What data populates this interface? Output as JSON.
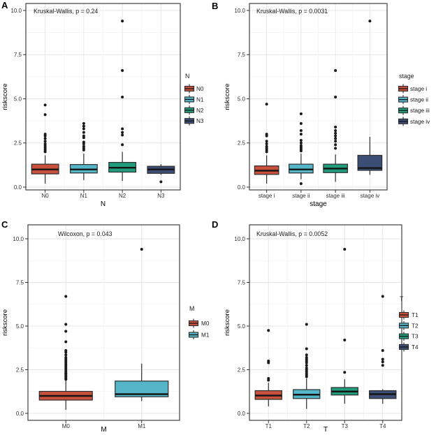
{
  "panel_labels": [
    "A",
    "B",
    "C",
    "D"
  ],
  "shared": {
    "y_axis_title": "riskscore",
    "ytick_labels": [
      "0.0",
      "2.5",
      "5.0",
      "7.5",
      "10.0"
    ],
    "ytick_values": [
      0,
      2.5,
      5,
      7.5,
      10
    ],
    "point_color": "#1a1a1a",
    "palette": [
      "#C8503C",
      "#54B6C8",
      "#219C7D",
      "#3C4E76"
    ]
  },
  "chart_data": [
    {
      "type": "boxplot",
      "panel_label": "A",
      "annotation": "Kruskal-Wallis, p = 0.24",
      "xlabel": "N",
      "ylabel": "riskscore",
      "ylim": [
        -0.2,
        10.4
      ],
      "yticks": [
        0,
        2.5,
        5,
        7.5,
        10
      ],
      "ytick_labels": [
        "0.0",
        "2.5",
        "5.0",
        "7.5",
        "10.0"
      ],
      "grid": true,
      "categories": [
        "N0",
        "N1",
        "N2",
        "N3"
      ],
      "legend": {
        "title": "N",
        "position": "right",
        "labels": [
          "N0",
          "N1",
          "N2",
          "N3"
        ]
      },
      "series": [
        {
          "name": "N0",
          "color": "#C8503C",
          "whisker_low": 0.2,
          "q1": 0.75,
          "median": 1.0,
          "q3": 1.3,
          "whisker_high": 1.8,
          "outliers": [
            2.0,
            2.05,
            2.15,
            2.25,
            2.35,
            2.45,
            2.6,
            2.75,
            2.9,
            3.0,
            4.1,
            4.65
          ]
        },
        {
          "name": "N1",
          "color": "#54B6C8",
          "whisker_low": 0.4,
          "q1": 0.8,
          "median": 1.0,
          "q3": 1.28,
          "whisker_high": 1.9,
          "outliers": [
            2.1,
            2.2,
            2.3,
            2.45,
            2.55,
            2.8,
            2.9,
            3.1,
            3.3,
            3.45,
            3.6
          ]
        },
        {
          "name": "N2",
          "color": "#219C7D",
          "whisker_low": 0.35,
          "q1": 0.85,
          "median": 1.1,
          "q3": 1.4,
          "whisker_high": 2.0,
          "outliers": [
            2.4,
            2.95,
            3.1,
            3.3,
            5.1,
            6.6,
            9.4
          ]
        },
        {
          "name": "N3",
          "color": "#3C4E76",
          "whisker_low": 0.7,
          "q1": 0.78,
          "median": 1.0,
          "q3": 1.18,
          "whisker_high": 1.3,
          "outliers": [
            0.3
          ]
        }
      ]
    },
    {
      "type": "boxplot",
      "panel_label": "B",
      "annotation": "Kruskal-Wallis, p = 0.0031",
      "xlabel": "stage",
      "ylabel": "riskscore",
      "ylim": [
        -0.2,
        10.4
      ],
      "yticks": [
        0,
        2.5,
        5,
        7.5,
        10
      ],
      "ytick_labels": [
        "0.0",
        "2.5",
        "5.0",
        "7.5",
        "10.0"
      ],
      "grid": true,
      "categories": [
        "stage i",
        "stage ii",
        "stage iii",
        "stage iv"
      ],
      "legend": {
        "title": "stage",
        "position": "right",
        "labels": [
          "stage i",
          "stage ii",
          "stage iii",
          "stage iv"
        ]
      },
      "series": [
        {
          "name": "stage i",
          "color": "#C8503C",
          "whisker_low": 0.2,
          "q1": 0.72,
          "median": 0.93,
          "q3": 1.2,
          "whisker_high": 1.8,
          "outliers": [
            2.0,
            2.1,
            2.2,
            2.3,
            2.45,
            2.6,
            2.9,
            3.0,
            4.7
          ]
        },
        {
          "name": "stage ii",
          "color": "#54B6C8",
          "whisker_low": 0.45,
          "q1": 0.8,
          "median": 1.0,
          "q3": 1.3,
          "whisker_high": 1.9,
          "outliers": [
            0.2,
            2.05,
            2.15,
            2.25,
            2.35,
            2.5,
            2.65,
            3.0,
            3.2,
            3.6,
            4.15
          ]
        },
        {
          "name": "stage iii",
          "color": "#219C7D",
          "whisker_low": 0.3,
          "q1": 0.82,
          "median": 1.05,
          "q3": 1.3,
          "whisker_high": 1.85,
          "outliers": [
            2.2,
            2.4,
            2.6,
            2.75,
            2.9,
            3.05,
            3.2,
            3.4,
            5.1,
            6.6
          ]
        },
        {
          "name": "stage iv",
          "color": "#3C4E76",
          "whisker_low": 0.7,
          "q1": 0.95,
          "median": 1.08,
          "q3": 1.8,
          "whisker_high": 2.85,
          "outliers": [
            9.4
          ]
        }
      ]
    },
    {
      "type": "boxplot",
      "panel_label": "C",
      "annotation": "Wilcoxon, p = 0.043",
      "xlabel": "M",
      "ylabel": "riskscore",
      "ylim": [
        -0.4,
        10.8
      ],
      "yticks": [
        0,
        2.5,
        5,
        7.5,
        10
      ],
      "ytick_labels": [
        "0.0",
        "2.5",
        "5.0",
        "7.5",
        "10.0"
      ],
      "grid": true,
      "categories": [
        "M0",
        "M1"
      ],
      "legend": {
        "title": "M",
        "position": "right",
        "labels": [
          "M0",
          "M1"
        ]
      },
      "series": [
        {
          "name": "M0",
          "color": "#C8503C",
          "whisker_low": 0.2,
          "q1": 0.76,
          "median": 1.0,
          "q3": 1.26,
          "whisker_high": 1.9,
          "outliers": [
            1.95,
            2.0,
            2.1,
            2.15,
            2.25,
            2.3,
            2.4,
            2.5,
            2.6,
            2.7,
            2.8,
            2.9,
            3.0,
            3.1,
            3.2,
            3.35,
            3.5,
            3.6,
            4.1,
            4.7,
            5.1,
            6.7
          ]
        },
        {
          "name": "M1",
          "color": "#54B6C8",
          "whisker_low": 0.7,
          "q1": 0.95,
          "median": 1.1,
          "q3": 1.85,
          "whisker_high": 2.85,
          "outliers": [
            9.4
          ]
        }
      ]
    },
    {
      "type": "boxplot",
      "panel_label": "D",
      "annotation": "Kruskal-Wallis, p = 0.0052",
      "xlabel": "T",
      "ylabel": "riskscore",
      "ylim": [
        -0.4,
        10.8
      ],
      "yticks": [
        0,
        2.5,
        5,
        7.5,
        10
      ],
      "ytick_labels": [
        "0.0",
        "2.5",
        "5.0",
        "7.5",
        "10.0"
      ],
      "grid": true,
      "categories": [
        "T1",
        "T2",
        "T3",
        "T4"
      ],
      "legend": {
        "title": "T",
        "position": "right",
        "labels": [
          "T1",
          "T2",
          "T3",
          "T4"
        ]
      },
      "series": [
        {
          "name": "T1",
          "color": "#C8503C",
          "whisker_low": 0.4,
          "q1": 0.8,
          "median": 1.02,
          "q3": 1.3,
          "whisker_high": 1.75,
          "outliers": [
            1.9,
            2.0,
            2.9,
            3.0,
            4.75
          ]
        },
        {
          "name": "T2",
          "color": "#54B6C8",
          "whisker_low": 0.25,
          "q1": 0.85,
          "median": 1.07,
          "q3": 1.36,
          "whisker_high": 2.0,
          "outliers": [
            2.1,
            2.2,
            2.3,
            2.4,
            2.5,
            2.6,
            2.75,
            2.9,
            3.0,
            3.1,
            3.2,
            3.35,
            3.7,
            5.1
          ]
        },
        {
          "name": "T3",
          "color": "#219C7D",
          "whisker_low": 0.55,
          "q1": 1.05,
          "median": 1.25,
          "q3": 1.48,
          "whisker_high": 1.95,
          "outliers": [
            2.35,
            4.2,
            9.4
          ]
        },
        {
          "name": "T4",
          "color": "#3C4E76",
          "whisker_low": 0.55,
          "q1": 0.85,
          "median": 1.1,
          "q3": 1.3,
          "whisker_high": 1.38,
          "outliers": [
            2.75,
            2.95,
            3.1,
            3.6,
            6.7
          ]
        }
      ]
    }
  ]
}
